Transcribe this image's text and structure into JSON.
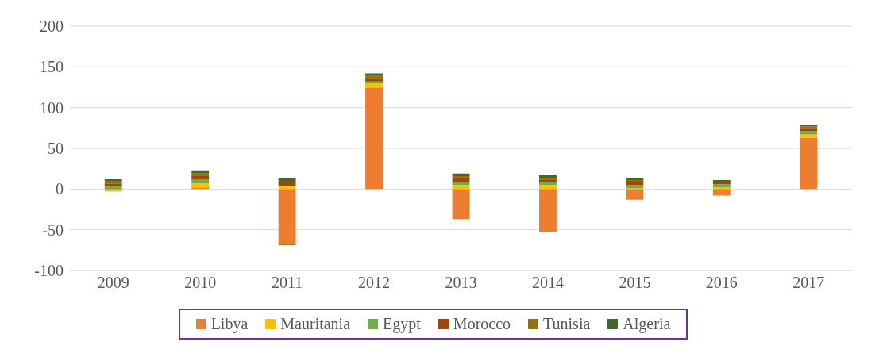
{
  "chart_data": {
    "type": "bar",
    "stacked": true,
    "categories": [
      "2009",
      "2010",
      "2011",
      "2012",
      "2013",
      "2014",
      "2015",
      "2016",
      "2017"
    ],
    "series": [
      {
        "name": "Libya",
        "color": "#ed7d31",
        "values": [
          -2,
          2,
          -68,
          124,
          -37,
          -53,
          -13,
          -8,
          63
        ]
      },
      {
        "name": "Mauritania",
        "color": "#ffc000",
        "values": [
          -1,
          5,
          3,
          6,
          5,
          5,
          1,
          2,
          4
        ]
      },
      {
        "name": "Egypt",
        "color": "#70ad47",
        "values": [
          3,
          5,
          1,
          2,
          3,
          3,
          4,
          4,
          4
        ]
      },
      {
        "name": "Morocco",
        "color": "#9e480e",
        "values": [
          4,
          4,
          6,
          3,
          5,
          3,
          5,
          2,
          4
        ]
      },
      {
        "name": "Tunisia",
        "color": "#997300",
        "values": [
          3,
          3,
          -1,
          4,
          3,
          3,
          1,
          1,
          2
        ]
      },
      {
        "name": "Algeria",
        "color": "#43682b",
        "values": [
          2,
          4,
          3,
          3,
          3,
          3,
          3,
          2,
          2
        ]
      }
    ],
    "ylim": [
      -100,
      200
    ],
    "yticks": [
      -100,
      -50,
      0,
      50,
      100,
      150,
      200
    ],
    "grid": "y",
    "legend": "bottom"
  }
}
